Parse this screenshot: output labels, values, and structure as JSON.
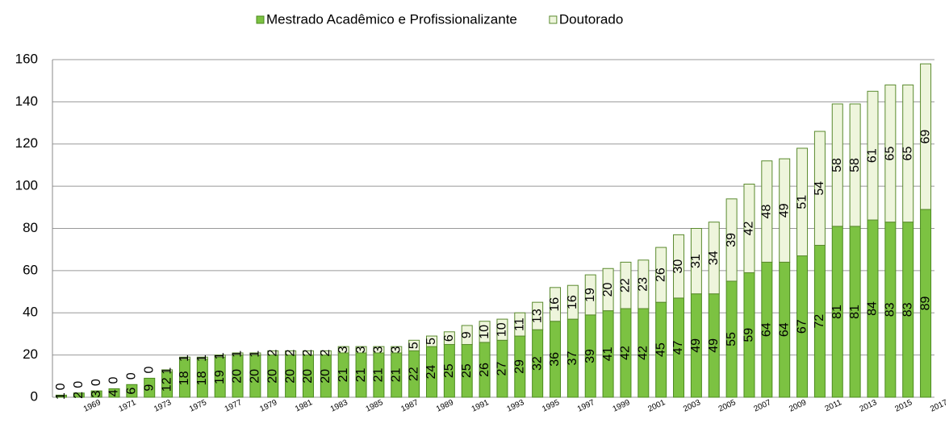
{
  "chart_data": {
    "type": "stacked_bar",
    "categories": [
      null,
      "1969",
      null,
      "1971",
      null,
      "1973",
      null,
      "1975",
      null,
      "1977",
      null,
      "1979",
      null,
      "1981",
      null,
      "1983",
      null,
      "1985",
      null,
      "1987",
      null,
      "1989",
      null,
      "1991",
      null,
      "1993",
      null,
      "1995",
      null,
      "1997",
      null,
      "1999",
      null,
      "2001",
      null,
      "2003",
      null,
      "2005",
      null,
      "2007",
      null,
      "2009",
      null,
      "2011",
      null,
      "2013",
      null,
      "2015",
      null,
      "2017"
    ],
    "series": [
      {
        "name": "Mestrado Acadêmico e Profissionalizante",
        "color": "#7cc242",
        "values": [
          1,
          2,
          3,
          4,
          6,
          9,
          12,
          18,
          18,
          19,
          20,
          20,
          20,
          20,
          20,
          20,
          21,
          21,
          21,
          21,
          22,
          24,
          25,
          25,
          26,
          27,
          29,
          32,
          36,
          37,
          39,
          41,
          42,
          42,
          45,
          47,
          49,
          49,
          55,
          59,
          64,
          64,
          67,
          72,
          81,
          81,
          84,
          83,
          83,
          89
        ]
      },
      {
        "name": "Doutorado",
        "color": "#eef5dc",
        "values": [
          0,
          0,
          0,
          0,
          0,
          0,
          1,
          1,
          1,
          1,
          1,
          1,
          2,
          2,
          2,
          2,
          3,
          3,
          3,
          3,
          5,
          5,
          6,
          9,
          10,
          10,
          11,
          13,
          16,
          16,
          19,
          20,
          22,
          23,
          26,
          30,
          31,
          34,
          39,
          42,
          48,
          49,
          51,
          54,
          58,
          58,
          61,
          65,
          65,
          69
        ]
      }
    ],
    "ylim": [
      0,
      160
    ],
    "yticks": [
      0,
      20,
      40,
      60,
      80,
      100,
      120,
      140,
      160
    ],
    "grid": true,
    "legend": "top"
  }
}
